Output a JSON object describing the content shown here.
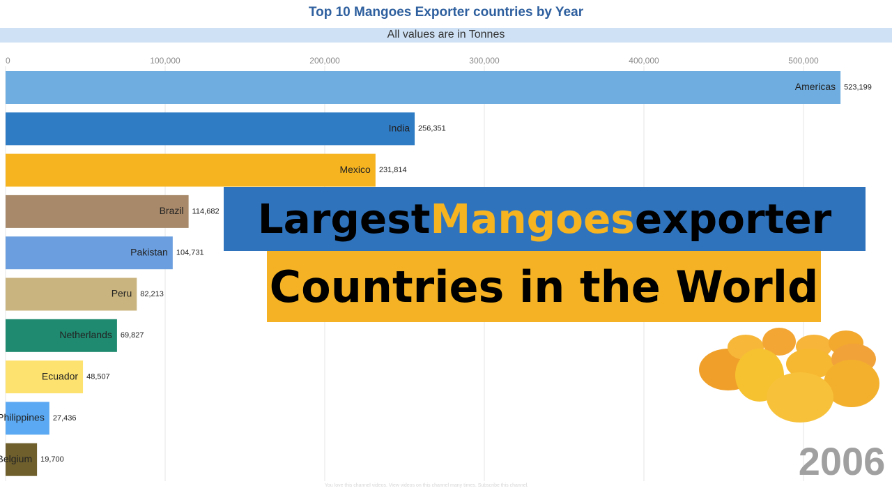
{
  "chart_data": {
    "type": "bar",
    "orientation": "horizontal",
    "title": "Top 10 Mangoes Exporter countries by Year",
    "subtitle": "All values are in Tonnes",
    "categories": [
      "Americas",
      "India",
      "Mexico",
      "Brazil",
      "Pakistan",
      "Peru",
      "Netherlands",
      "Ecuador",
      "Philippines",
      "Belgium"
    ],
    "values": [
      523199,
      256351,
      231814,
      114682,
      104731,
      82213,
      69827,
      48507,
      27436,
      19700
    ],
    "value_labels": [
      "523,199",
      "256,351",
      "231,814",
      "114,682",
      "104,731",
      "82,213",
      "69,827",
      "48,507",
      "27,436",
      "19,700"
    ],
    "colors": [
      "#6fade0",
      "#2f7bc4",
      "#f6b420",
      "#a8896a",
      "#6b9edf",
      "#c9b47f",
      "#1f8a70",
      "#fde26f",
      "#5aa9f2",
      "#6e5f2d"
    ],
    "xlim": [
      0,
      550000
    ],
    "xticks": [
      0,
      {
        "value": 100000,
        "label": "100,000"
      },
      {
        "value": 200000,
        "label": "200,000"
      },
      {
        "value": 300000,
        "label": "300,000"
      },
      {
        "value": 400000,
        "label": "400,000"
      },
      {
        "value": 500000,
        "label": "500,000"
      }
    ],
    "grid": true,
    "year_label": "2006",
    "footnote": "You love this channel videos. View videos on this channel many times. Subscribe this channel."
  },
  "overlay": {
    "line1": {
      "before": "Largest",
      "highlight": "Mangoes",
      "after": "exporter"
    },
    "line2": "Countries in the World"
  }
}
